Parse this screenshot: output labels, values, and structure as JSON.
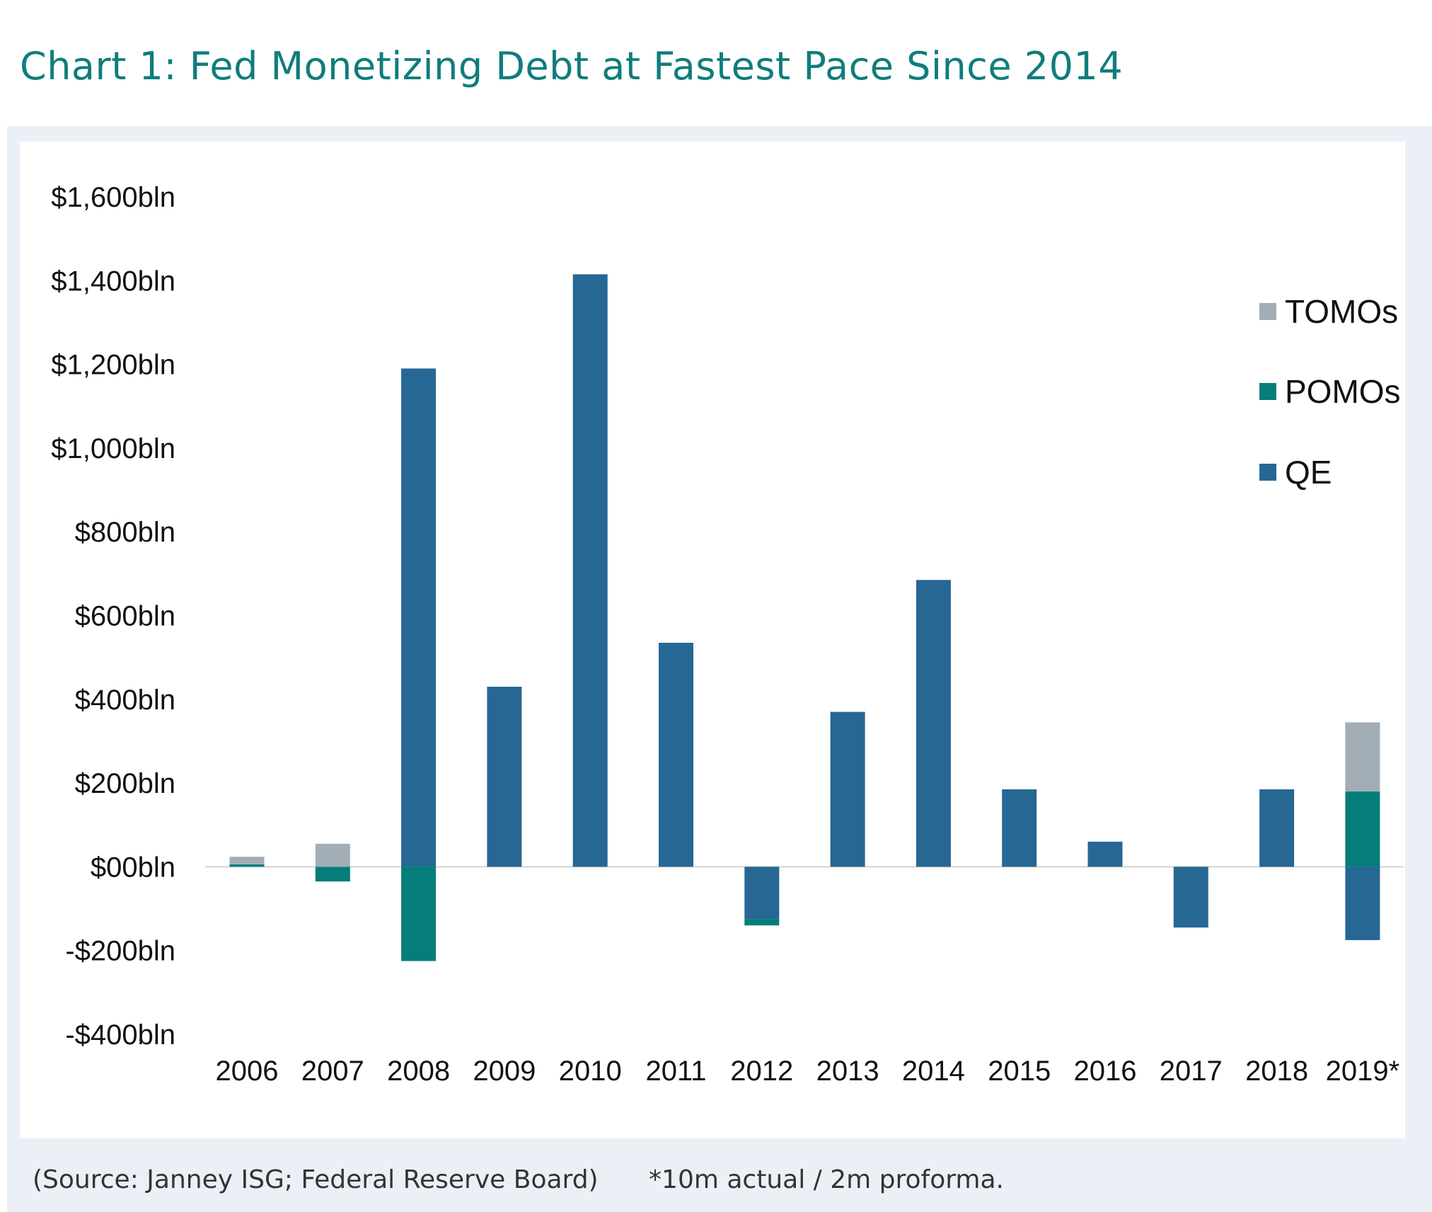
{
  "title": "Chart 1:  Fed Monetizing Debt at Fastest Pace Since 2014",
  "footer": {
    "source": "(Source: Janney ISG; Federal Reserve Board)",
    "note": "*10m actual / 2m proforma."
  },
  "colors": {
    "TOMOs": "#a3adb5",
    "POMOs": "#047d7b",
    "QE": "#276794",
    "title": "#0f7d7c"
  },
  "chart_data": {
    "type": "bar",
    "stacked": true,
    "title": "",
    "xlabel": "",
    "ylabel": "",
    "categories": [
      "2006",
      "2007",
      "2008",
      "2009",
      "2010",
      "2011",
      "2012",
      "2013",
      "2014",
      "2015",
      "2016",
      "2017",
      "2018",
      "2019*"
    ],
    "series": [
      {
        "name": "QE",
        "values": [
          0,
          0,
          1190,
          430,
          1415,
          535,
          -125,
          370,
          685,
          185,
          60,
          -145,
          185,
          -175
        ]
      },
      {
        "name": "POMOs",
        "values": [
          6,
          -35,
          -225,
          0,
          0,
          0,
          -15,
          0,
          0,
          0,
          0,
          0,
          0,
          180
        ]
      },
      {
        "name": "TOMOs",
        "values": [
          18,
          55,
          0,
          0,
          0,
          0,
          0,
          0,
          0,
          0,
          0,
          0,
          0,
          165
        ]
      }
    ],
    "ylim": [
      -400,
      1600
    ],
    "yticks": [
      1600,
      1400,
      1200,
      1000,
      800,
      600,
      400,
      200,
      0,
      -200,
      -400
    ],
    "ytick_labels": [
      "$1,600bln",
      "$1,400bln",
      "$1,200bln",
      "$1,000bln",
      "$800bln",
      "$600bln",
      "$400bln",
      "$200bln",
      "$00bln",
      "-$200bln",
      "-$400bln"
    ],
    "legend": {
      "position": "top-right",
      "order": [
        "TOMOs",
        "POMOs",
        "QE"
      ]
    },
    "grid": false
  }
}
